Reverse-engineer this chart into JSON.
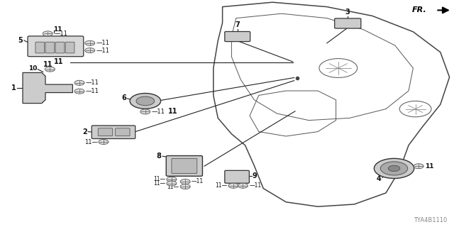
{
  "bg_color": "#ffffff",
  "watermark": "TYA4B1110",
  "fr_label": "FR.",
  "line_color": "#222222",
  "text_color": "#111111"
}
